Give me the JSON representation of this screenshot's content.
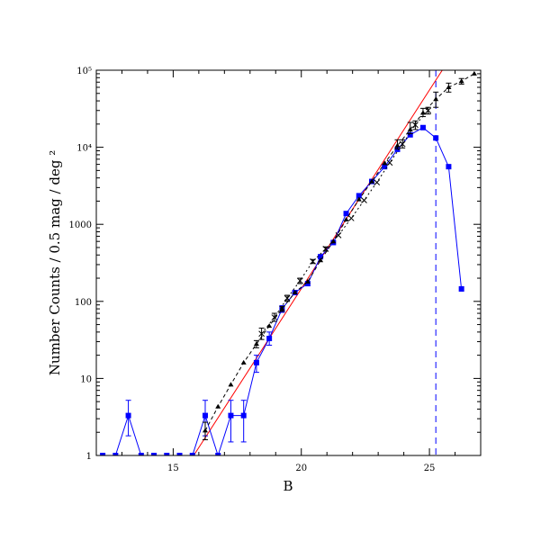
{
  "chart_data": {
    "type": "scatter",
    "xlabel": "B",
    "ylabel": "Number Counts / 0.5 mag / deg ²",
    "xlim": [
      12,
      27
    ],
    "ylim": [
      1,
      100000
    ],
    "yscale": "log",
    "x_ticks": [
      {
        "value": 15,
        "label": "15"
      },
      {
        "value": 20,
        "label": "20"
      },
      {
        "value": 25,
        "label": "25"
      }
    ],
    "y_ticks": [
      {
        "value": 1,
        "label": "1"
      },
      {
        "value": 10,
        "label": "10"
      },
      {
        "value": 100,
        "label": "100"
      },
      {
        "value": 1000,
        "label": "1000"
      },
      {
        "value": 10000,
        "label": "10⁴"
      },
      {
        "value": 100000,
        "label": "10⁵"
      }
    ],
    "series": [
      {
        "style": "blue-squares-solid",
        "color": "#0000ff",
        "points": [
          {
            "x": 12.25,
            "y": 1
          },
          {
            "x": 12.75,
            "y": 1
          },
          {
            "x": 13.25,
            "y": 3.3,
            "err": [
              1.8,
              5.2
            ]
          },
          {
            "x": 13.75,
            "y": 1
          },
          {
            "x": 14.25,
            "y": 1
          },
          {
            "x": 14.75,
            "y": 1
          },
          {
            "x": 15.25,
            "y": 1
          },
          {
            "x": 15.75,
            "y": 1
          },
          {
            "x": 16.25,
            "y": 3.3,
            "err": [
              1.8,
              5.2
            ]
          },
          {
            "x": 16.75,
            "y": 1
          },
          {
            "x": 17.25,
            "y": 3.3,
            "err": [
              1.5,
              5.2
            ]
          },
          {
            "x": 17.75,
            "y": 3.3,
            "err": [
              1.5,
              5.2
            ]
          },
          {
            "x": 18.25,
            "y": 16,
            "err": [
              12,
              20
            ]
          },
          {
            "x": 18.75,
            "y": 33,
            "err": [
              27,
              40
            ]
          },
          {
            "x": 19.25,
            "y": 80,
            "err": [
              72,
              88
            ]
          },
          {
            "x": 19.75,
            "y": 130
          },
          {
            "x": 20.25,
            "y": 170
          },
          {
            "x": 20.75,
            "y": 380
          },
          {
            "x": 21.25,
            "y": 580
          },
          {
            "x": 21.75,
            "y": 1380
          },
          {
            "x": 22.25,
            "y": 2350
          },
          {
            "x": 22.75,
            "y": 3600
          },
          {
            "x": 23.25,
            "y": 5600
          },
          {
            "x": 23.75,
            "y": 9400
          },
          {
            "x": 24.25,
            "y": 14500
          },
          {
            "x": 24.75,
            "y": 18000
          },
          {
            "x": 25.25,
            "y": 13200
          },
          {
            "x": 25.75,
            "y": 5600
          },
          {
            "x": 26.25,
            "y": 145
          }
        ]
      },
      {
        "style": "black-triangles-dashed",
        "color": "#000000",
        "points": [
          {
            "x": 16.25,
            "y": 2.1,
            "err": [
              1.6,
              2.7
            ]
          },
          {
            "x": 16.75,
            "y": 4.3
          },
          {
            "x": 17.25,
            "y": 8.3
          },
          {
            "x": 17.75,
            "y": 16
          },
          {
            "x": 18.25,
            "y": 28,
            "err": [
              25,
              31
            ]
          },
          {
            "x": 18.75,
            "y": 48
          },
          {
            "x": 19.25,
            "y": 80,
            "err": [
              74,
              86
            ]
          },
          {
            "x": 19.75,
            "y": 130
          },
          {
            "x": 20.25,
            "y": 180
          },
          {
            "x": 20.75,
            "y": 340
          },
          {
            "x": 21.25,
            "y": 600
          },
          {
            "x": 21.75,
            "y": 1150
          },
          {
            "x": 22.25,
            "y": 2100
          },
          {
            "x": 22.75,
            "y": 3600
          },
          {
            "x": 23.25,
            "y": 6200
          },
          {
            "x": 23.75,
            "y": 10500,
            "err": [
              9500,
              12500
            ]
          },
          {
            "x": 24.25,
            "y": 17000,
            "err": [
              15000,
              21000
            ]
          },
          {
            "x": 24.75,
            "y": 28000,
            "err": [
              25000,
              32000
            ]
          },
          {
            "x": 25.25,
            "y": 42000,
            "err": [
              33000,
              52000
            ]
          },
          {
            "x": 25.75,
            "y": 60000,
            "err": [
              52000,
              68000
            ]
          },
          {
            "x": 26.25,
            "y": 72000,
            "err": [
              66000,
              78000
            ]
          },
          {
            "x": 26.75,
            "y": 90000
          }
        ]
      },
      {
        "style": "crosses-dashed",
        "color": "#000000",
        "points": [
          {
            "x": 18.45,
            "y": 38,
            "err": [
              32,
              45
            ]
          },
          {
            "x": 18.95,
            "y": 62,
            "err": [
              55,
              70
            ]
          },
          {
            "x": 19.45,
            "y": 110,
            "err": [
              100,
              120
            ]
          },
          {
            "x": 19.95,
            "y": 185,
            "err": [
              170,
              200
            ]
          },
          {
            "x": 20.45,
            "y": 330,
            "err": [
              310,
              350
            ]
          },
          {
            "x": 20.95,
            "y": 480,
            "err": [
              450,
              510
            ]
          },
          {
            "x": 21.45,
            "y": 720
          },
          {
            "x": 21.95,
            "y": 1200
          },
          {
            "x": 22.45,
            "y": 2050
          },
          {
            "x": 22.95,
            "y": 3500
          },
          {
            "x": 23.45,
            "y": 6300
          },
          {
            "x": 23.95,
            "y": 11000,
            "err": [
              9800,
              12500
            ]
          },
          {
            "x": 24.45,
            "y": 19500,
            "err": [
              17000,
              22000
            ]
          },
          {
            "x": 24.95,
            "y": 30000,
            "err": [
              27000,
              33000
            ]
          }
        ]
      }
    ],
    "fit_line": {
      "color": "#ff0000",
      "from": {
        "x": 15.8,
        "y": 1
      },
      "to": {
        "x": 25.5,
        "y": 100000
      }
    },
    "limit_line": {
      "color": "#0000ff",
      "x": 25.25
    }
  }
}
